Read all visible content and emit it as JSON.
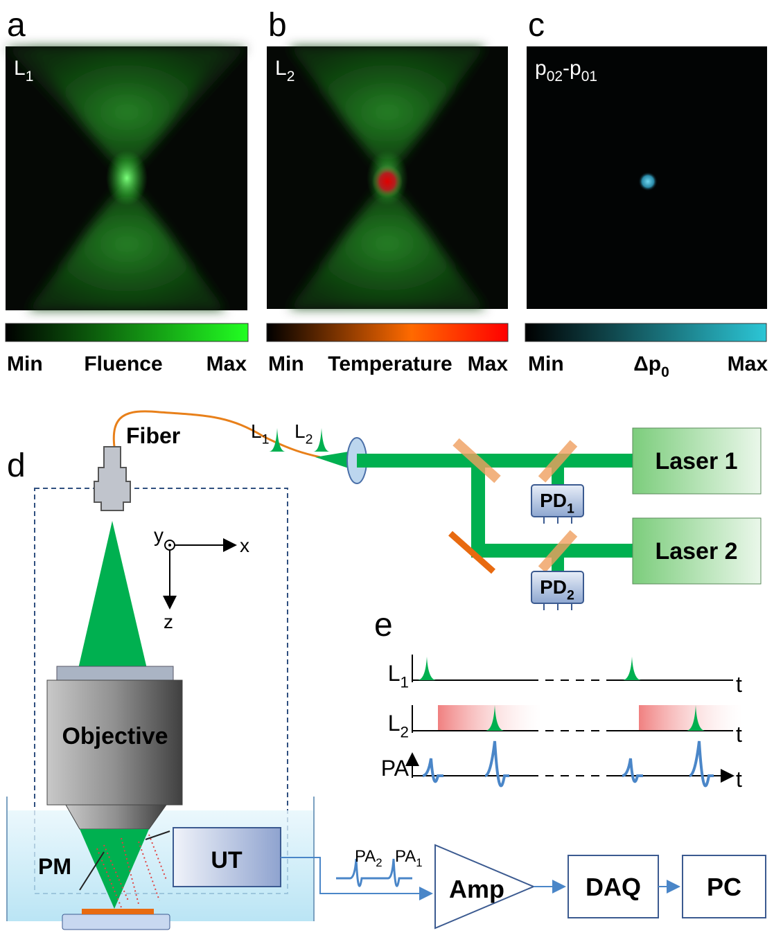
{
  "panels": [
    {
      "letter": "a",
      "image_label": [
        {
          "t": "L",
          "s": "1"
        }
      ],
      "colorbar": {
        "min": "Min",
        "name": "Fluence",
        "max": "Max"
      }
    },
    {
      "letter": "b",
      "image_label": [
        {
          "t": "L",
          "s": "2"
        }
      ],
      "colorbar": {
        "min": "Min",
        "name": "Temperature",
        "max": "Max"
      }
    },
    {
      "letter": "c",
      "image_label": [
        {
          "t": "p",
          "s": "02"
        },
        {
          "t": "-p",
          "s": "01"
        }
      ],
      "colorbar": {
        "min": "Min",
        "name": [
          {
            "t": "Δp",
            "s": "0"
          }
        ],
        "max": "Max"
      }
    }
  ],
  "setup": {
    "letter": "d",
    "fiber": "Fiber",
    "pulses": [
      [
        {
          "t": "L",
          "s": "1"
        }
      ],
      [
        {
          "t": "L",
          "s": "2"
        }
      ]
    ],
    "lasers": [
      "Laser 1",
      "Laser 2"
    ],
    "photodiodes": [
      [
        {
          "t": "PD",
          "s": "1"
        }
      ],
      [
        {
          "t": "PD",
          "s": "2"
        }
      ]
    ],
    "axes": {
      "x": "x",
      "y": "y",
      "z": "z"
    },
    "objective": "Objective",
    "mirror": "PM",
    "transducer": "UT",
    "signals": [
      [
        {
          "t": "PA",
          "s": "2"
        }
      ],
      [
        {
          "t": "PA",
          "s": "1"
        }
      ]
    ],
    "amplifier": "Amp",
    "daq": "DAQ",
    "pc": "PC"
  },
  "timing": {
    "letter": "e",
    "rows": [
      {
        "label": [
          {
            "t": "L",
            "s": "1"
          }
        ],
        "axis": "t"
      },
      {
        "label": [
          {
            "t": "L",
            "s": "2"
          }
        ],
        "axis": "t"
      },
      {
        "label": "PA",
        "axis": "t"
      }
    ]
  }
}
